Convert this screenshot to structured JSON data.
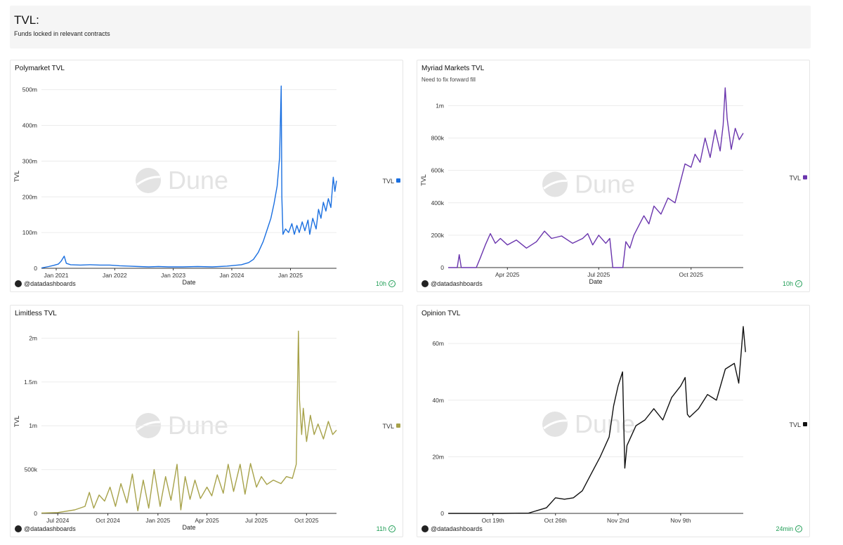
{
  "header": {
    "title": "TVL:",
    "subtitle": "Funds locked in relevant contracts"
  },
  "watermark": "Dune",
  "colors": {
    "polymarket": "#1a6fe0",
    "myriad": "#6a35ad",
    "limitless": "#a7a24a",
    "opinion": "#111111",
    "grid": "#ececec",
    "axis": "#333333"
  },
  "panels": [
    {
      "credit": "@datadashboards",
      "freshness": "10h"
    },
    {
      "credit": "@datadashboards",
      "freshness": "10h"
    },
    {
      "credit": "@datadashboards",
      "freshness": "11h"
    },
    {
      "credit": "@datadashboards",
      "freshness": "24min"
    }
  ],
  "chart_data": [
    {
      "type": "line",
      "title": "Polymarket TVL",
      "subtitle": "",
      "xlabel": "Date",
      "ylabel": "TVL",
      "legend": "TVL",
      "legend_position": "right",
      "x_ticks": [
        "Jan 2021",
        "Jan 2022",
        "Jan 2023",
        "Jan 2024",
        "Jan 2025"
      ],
      "y_ticks": [
        "0",
        "100m",
        "200m",
        "300m",
        "400m",
        "500m"
      ],
      "ylim": [
        0,
        515000000
      ],
      "xlim": [
        "2020-10-01",
        "2025-10-15"
      ],
      "series": [
        {
          "values": [
            [
              "2020-10-01",
              1000000
            ],
            [
              "2020-11-15",
              5000000
            ],
            [
              "2020-12-15",
              8000000
            ],
            [
              "2021-01-15",
              12000000
            ],
            [
              "2021-02-01",
              20000000
            ],
            [
              "2021-02-20",
              34000000
            ],
            [
              "2021-03-05",
              14000000
            ],
            [
              "2021-04-01",
              10000000
            ],
            [
              "2021-06-01",
              9000000
            ],
            [
              "2021-08-01",
              10000000
            ],
            [
              "2021-10-01",
              9000000
            ],
            [
              "2021-12-01",
              9000000
            ],
            [
              "2022-02-01",
              7000000
            ],
            [
              "2022-04-01",
              6000000
            ],
            [
              "2022-06-01",
              5000000
            ],
            [
              "2022-08-01",
              4000000
            ],
            [
              "2022-10-01",
              5000000
            ],
            [
              "2022-12-01",
              4000000
            ],
            [
              "2023-03-01",
              4000000
            ],
            [
              "2023-06-01",
              5000000
            ],
            [
              "2023-09-01",
              4000000
            ],
            [
              "2023-12-01",
              6000000
            ],
            [
              "2024-01-15",
              8000000
            ],
            [
              "2024-03-01",
              10000000
            ],
            [
              "2024-04-15",
              16000000
            ],
            [
              "2024-05-15",
              25000000
            ],
            [
              "2024-06-15",
              45000000
            ],
            [
              "2024-07-15",
              75000000
            ],
            [
              "2024-08-10",
              110000000
            ],
            [
              "2024-09-01",
              140000000
            ],
            [
              "2024-09-20",
              180000000
            ],
            [
              "2024-10-10",
              230000000
            ],
            [
              "2024-10-25",
              310000000
            ],
            [
              "2024-11-04",
              510000000
            ],
            [
              "2024-11-08",
              200000000
            ],
            [
              "2024-11-15",
              95000000
            ],
            [
              "2024-12-01",
              110000000
            ],
            [
              "2024-12-20",
              100000000
            ],
            [
              "2025-01-10",
              125000000
            ],
            [
              "2025-01-25",
              95000000
            ],
            [
              "2025-02-10",
              120000000
            ],
            [
              "2025-02-25",
              100000000
            ],
            [
              "2025-03-15",
              130000000
            ],
            [
              "2025-04-01",
              105000000
            ],
            [
              "2025-04-20",
              135000000
            ],
            [
              "2025-05-01",
              95000000
            ],
            [
              "2025-05-20",
              140000000
            ],
            [
              "2025-06-10",
              110000000
            ],
            [
              "2025-06-25",
              165000000
            ],
            [
              "2025-07-10",
              140000000
            ],
            [
              "2025-07-25",
              185000000
            ],
            [
              "2025-08-10",
              160000000
            ],
            [
              "2025-08-25",
              195000000
            ],
            [
              "2025-09-10",
              170000000
            ],
            [
              "2025-09-25",
              255000000
            ],
            [
              "2025-10-05",
              215000000
            ],
            [
              "2025-10-15",
              245000000
            ]
          ]
        }
      ]
    },
    {
      "type": "line",
      "title": "Myriad Markets TVL",
      "subtitle": "Need to fix forward fill",
      "xlabel": "Date",
      "ylabel": "TVL",
      "legend": "TVL",
      "legend_position": "right",
      "x_ticks": [
        "Apr 2025",
        "Jul 2025",
        "Oct 2025"
      ],
      "y_ticks": [
        "0",
        "200k",
        "400k",
        "600k",
        "800k",
        "1m"
      ],
      "ylim": [
        0,
        1080000
      ],
      "xlim": [
        "2025-02-01",
        "2025-11-22"
      ],
      "series": [
        {
          "values": [
            [
              "2025-02-01",
              0
            ],
            [
              "2025-02-10",
              0
            ],
            [
              "2025-02-12",
              80000
            ],
            [
              "2025-02-14",
              0
            ],
            [
              "2025-03-01",
              0
            ],
            [
              "2025-03-05",
              60000
            ],
            [
              "2025-03-10",
              140000
            ],
            [
              "2025-03-15",
              210000
            ],
            [
              "2025-03-20",
              150000
            ],
            [
              "2025-03-25",
              180000
            ],
            [
              "2025-04-01",
              140000
            ],
            [
              "2025-04-10",
              170000
            ],
            [
              "2025-04-20",
              120000
            ],
            [
              "2025-04-30",
              160000
            ],
            [
              "2025-05-08",
              225000
            ],
            [
              "2025-05-15",
              180000
            ],
            [
              "2025-05-25",
              195000
            ],
            [
              "2025-06-05",
              150000
            ],
            [
              "2025-06-15",
              180000
            ],
            [
              "2025-06-20",
              210000
            ],
            [
              "2025-06-25",
              140000
            ],
            [
              "2025-07-01",
              200000
            ],
            [
              "2025-07-08",
              150000
            ],
            [
              "2025-07-12",
              180000
            ],
            [
              "2025-07-15",
              0
            ],
            [
              "2025-07-25",
              0
            ],
            [
              "2025-07-28",
              160000
            ],
            [
              "2025-08-01",
              120000
            ],
            [
              "2025-08-05",
              200000
            ],
            [
              "2025-08-10",
              260000
            ],
            [
              "2025-08-15",
              320000
            ],
            [
              "2025-08-20",
              270000
            ],
            [
              "2025-08-25",
              380000
            ],
            [
              "2025-09-01",
              330000
            ],
            [
              "2025-09-08",
              430000
            ],
            [
              "2025-09-15",
              400000
            ],
            [
              "2025-09-20",
              520000
            ],
            [
              "2025-09-25",
              640000
            ],
            [
              "2025-10-01",
              620000
            ],
            [
              "2025-10-05",
              700000
            ],
            [
              "2025-10-10",
              650000
            ],
            [
              "2025-10-15",
              800000
            ],
            [
              "2025-10-20",
              680000
            ],
            [
              "2025-10-25",
              850000
            ],
            [
              "2025-10-30",
              720000
            ],
            [
              "2025-11-02",
              880000
            ],
            [
              "2025-11-04",
              1110000
            ],
            [
              "2025-11-06",
              920000
            ],
            [
              "2025-11-10",
              730000
            ],
            [
              "2025-11-14",
              860000
            ],
            [
              "2025-11-18",
              790000
            ],
            [
              "2025-11-22",
              830000
            ]
          ]
        }
      ]
    },
    {
      "type": "line",
      "title": "Limitless TVL",
      "subtitle": "",
      "xlabel": "Date",
      "ylabel": "TVL",
      "legend": "TVL",
      "legend_position": "right",
      "x_ticks": [
        "Jul 2024",
        "Oct 2024",
        "Jan 2025",
        "Apr 2025",
        "Jul 2025",
        "Oct 2025"
      ],
      "y_ticks": [
        "0",
        "500k",
        "1m",
        "1.5m",
        "2m"
      ],
      "ylim": [
        0,
        2100000
      ],
      "xlim": [
        "2024-06-01",
        "2025-11-25"
      ],
      "series": [
        {
          "values": [
            [
              "2024-06-01",
              5000
            ],
            [
              "2024-07-01",
              10000
            ],
            [
              "2024-08-01",
              40000
            ],
            [
              "2024-08-20",
              80000
            ],
            [
              "2024-08-28",
              240000
            ],
            [
              "2024-09-05",
              60000
            ],
            [
              "2024-09-15",
              210000
            ],
            [
              "2024-09-25",
              140000
            ],
            [
              "2024-10-05",
              300000
            ],
            [
              "2024-10-15",
              80000
            ],
            [
              "2024-10-25",
              340000
            ],
            [
              "2024-11-05",
              120000
            ],
            [
              "2024-11-15",
              450000
            ],
            [
              "2024-11-25",
              30000
            ],
            [
              "2024-12-05",
              380000
            ],
            [
              "2024-12-15",
              60000
            ],
            [
              "2024-12-25",
              500000
            ],
            [
              "2025-01-05",
              80000
            ],
            [
              "2025-01-15",
              420000
            ],
            [
              "2025-01-25",
              150000
            ],
            [
              "2025-02-05",
              560000
            ],
            [
              "2025-02-12",
              40000
            ],
            [
              "2025-02-20",
              420000
            ],
            [
              "2025-03-01",
              160000
            ],
            [
              "2025-03-10",
              380000
            ],
            [
              "2025-03-20",
              170000
            ],
            [
              "2025-04-01",
              300000
            ],
            [
              "2025-04-10",
              200000
            ],
            [
              "2025-04-20",
              440000
            ],
            [
              "2025-05-01",
              230000
            ],
            [
              "2025-05-10",
              560000
            ],
            [
              "2025-05-20",
              250000
            ],
            [
              "2025-06-01",
              560000
            ],
            [
              "2025-06-10",
              220000
            ],
            [
              "2025-06-20",
              570000
            ],
            [
              "2025-07-01",
              300000
            ],
            [
              "2025-07-10",
              420000
            ],
            [
              "2025-07-20",
              330000
            ],
            [
              "2025-08-01",
              380000
            ],
            [
              "2025-08-15",
              340000
            ],
            [
              "2025-08-25",
              420000
            ],
            [
              "2025-09-05",
              400000
            ],
            [
              "2025-09-12",
              560000
            ],
            [
              "2025-09-16",
              2080000
            ],
            [
              "2025-09-18",
              1300000
            ],
            [
              "2025-09-22",
              900000
            ],
            [
              "2025-09-25",
              1200000
            ],
            [
              "2025-10-01",
              820000
            ],
            [
              "2025-10-08",
              1120000
            ],
            [
              "2025-10-15",
              900000
            ],
            [
              "2025-10-22",
              1020000
            ],
            [
              "2025-11-01",
              850000
            ],
            [
              "2025-11-10",
              1050000
            ],
            [
              "2025-11-18",
              900000
            ],
            [
              "2025-11-25",
              950000
            ]
          ]
        }
      ]
    },
    {
      "type": "line",
      "title": "Opinion TVL",
      "subtitle": "",
      "xlabel": "",
      "ylabel": "",
      "legend": "TVL",
      "legend_position": "right",
      "x_ticks": [
        "Oct 19th",
        "Oct 26th",
        "Nov 2nd",
        "Nov 9th"
      ],
      "y_ticks": [
        "0",
        "20m",
        "40m",
        "60m"
      ],
      "ylim": [
        0,
        66000000
      ],
      "xlim": [
        "2025-10-14",
        "2025-11-16"
      ],
      "series": [
        {
          "values": [
            [
              "2025-10-14",
              0
            ],
            [
              "2025-10-20",
              0
            ],
            [
              "2025-10-23",
              100000
            ],
            [
              "2025-10-25",
              2000000
            ],
            [
              "2025-10-26",
              5500000
            ],
            [
              "2025-10-27",
              5000000
            ],
            [
              "2025-10-28",
              5500000
            ],
            [
              "2025-10-29",
              8000000
            ],
            [
              "2025-10-30",
              14000000
            ],
            [
              "2025-10-31",
              20000000
            ],
            [
              "2025-11-01",
              27000000
            ],
            [
              "2025-11-01T12:00",
              38000000
            ],
            [
              "2025-11-02",
              45000000
            ],
            [
              "2025-11-02T12:00",
              50000000
            ],
            [
              "2025-11-02T18:00",
              16000000
            ],
            [
              "2025-11-03",
              24000000
            ],
            [
              "2025-11-04",
              31000000
            ],
            [
              "2025-11-05",
              33000000
            ],
            [
              "2025-11-06",
              37000000
            ],
            [
              "2025-11-07",
              33000000
            ],
            [
              "2025-11-08",
              41000000
            ],
            [
              "2025-11-09",
              45000000
            ],
            [
              "2025-11-09T12:00",
              48000000
            ],
            [
              "2025-11-09T18:00",
              35000000
            ],
            [
              "2025-11-10",
              34000000
            ],
            [
              "2025-11-11",
              37000000
            ],
            [
              "2025-11-12",
              42000000
            ],
            [
              "2025-11-13",
              40000000
            ],
            [
              "2025-11-14",
              51000000
            ],
            [
              "2025-11-15",
              53000000
            ],
            [
              "2025-11-15T12:00",
              46000000
            ],
            [
              "2025-11-15T18:00",
              56000000
            ],
            [
              "2025-11-16",
              66000000
            ],
            [
              "2025-11-16T06:00",
              57000000
            ]
          ]
        }
      ]
    }
  ]
}
